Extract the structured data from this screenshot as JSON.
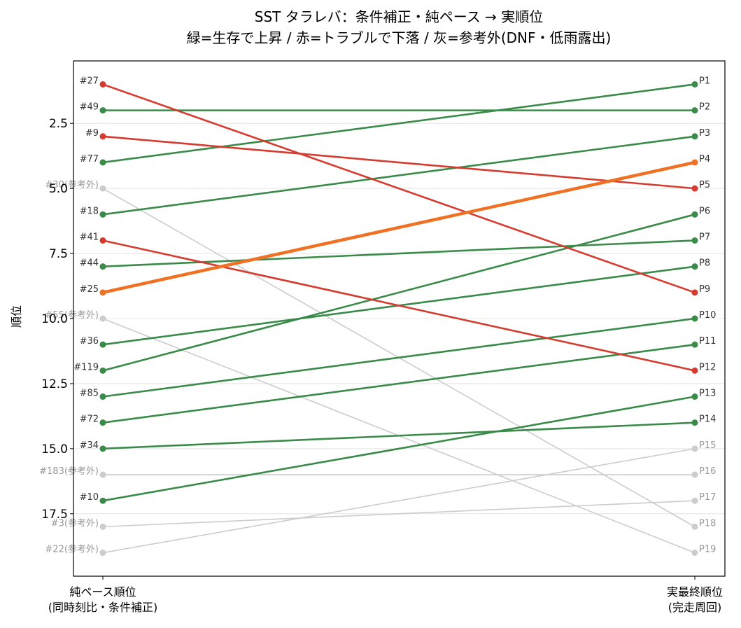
{
  "chart_data": {
    "type": "line",
    "title_lines": [
      "SST タラレバ：条件補正・純ペース → 実順位",
      "緑=生存で上昇 / 赤=トラブルで下落 / 灰=参考外(DNF・低雨露出)"
    ],
    "ylabel": "順位",
    "x_categories": [
      "純ペース順位\n(同時刻比・条件補正)",
      "実最終順位\n(完走周回)"
    ],
    "ylim": [
      19.9,
      0.1
    ],
    "y_inverted": true,
    "y_ticks": [
      2.5,
      5.0,
      7.5,
      10.0,
      12.5,
      15.0,
      17.5
    ],
    "y_tick_labels": [
      "2.5",
      "5.0",
      "7.5",
      "10.0",
      "12.5",
      "15.0",
      "17.5"
    ],
    "grid": "horizontal",
    "colors": {
      "green": "#3a8a4a",
      "red": "#d63b2f",
      "gray": "#cccccc",
      "highlight": "#f07024",
      "label_dark": "#333333",
      "label_gray": "#999999"
    },
    "series": [
      {
        "left_label": "#27",
        "pace_rank": 1,
        "final_rank": 9,
        "category": "red"
      },
      {
        "left_label": "#49",
        "pace_rank": 2,
        "final_rank": 2,
        "category": "green"
      },
      {
        "left_label": "#9",
        "pace_rank": 3,
        "final_rank": 5,
        "category": "red"
      },
      {
        "left_label": "#77",
        "pace_rank": 4,
        "final_rank": 1,
        "category": "green"
      },
      {
        "left_label": "#30(参考外)",
        "pace_rank": 5,
        "final_rank": 18,
        "category": "gray"
      },
      {
        "left_label": "#18",
        "pace_rank": 6,
        "final_rank": 3,
        "category": "green"
      },
      {
        "left_label": "#41",
        "pace_rank": 7,
        "final_rank": 12,
        "category": "red"
      },
      {
        "left_label": "#44",
        "pace_rank": 8,
        "final_rank": 7,
        "category": "green"
      },
      {
        "left_label": "#25",
        "pace_rank": 9,
        "final_rank": 4,
        "category": "highlight"
      },
      {
        "left_label": "#55(参考外)",
        "pace_rank": 10,
        "final_rank": 19,
        "category": "gray"
      },
      {
        "left_label": "#36",
        "pace_rank": 11,
        "final_rank": 8,
        "category": "green"
      },
      {
        "left_label": "#119",
        "pace_rank": 12,
        "final_rank": 6,
        "category": "green"
      },
      {
        "left_label": "#85",
        "pace_rank": 13,
        "final_rank": 10,
        "category": "green"
      },
      {
        "left_label": "#72",
        "pace_rank": 14,
        "final_rank": 11,
        "category": "green"
      },
      {
        "left_label": "#34",
        "pace_rank": 15,
        "final_rank": 14,
        "category": "green"
      },
      {
        "left_label": "#183(参考外)",
        "pace_rank": 16,
        "final_rank": 16,
        "category": "gray"
      },
      {
        "left_label": "#10",
        "pace_rank": 17,
        "final_rank": 13,
        "category": "green"
      },
      {
        "left_label": "#3(参考外)",
        "pace_rank": 18,
        "final_rank": 17,
        "category": "gray"
      },
      {
        "left_label": "#22(参考外)",
        "pace_rank": 19,
        "final_rank": 15,
        "category": "gray"
      }
    ],
    "right_labels": [
      "P1",
      "P2",
      "P3",
      "P4",
      "P5",
      "P6",
      "P7",
      "P8",
      "P9",
      "P10",
      "P11",
      "P12",
      "P13",
      "P14",
      "P15",
      "P16",
      "P17",
      "P18",
      "P19"
    ]
  }
}
